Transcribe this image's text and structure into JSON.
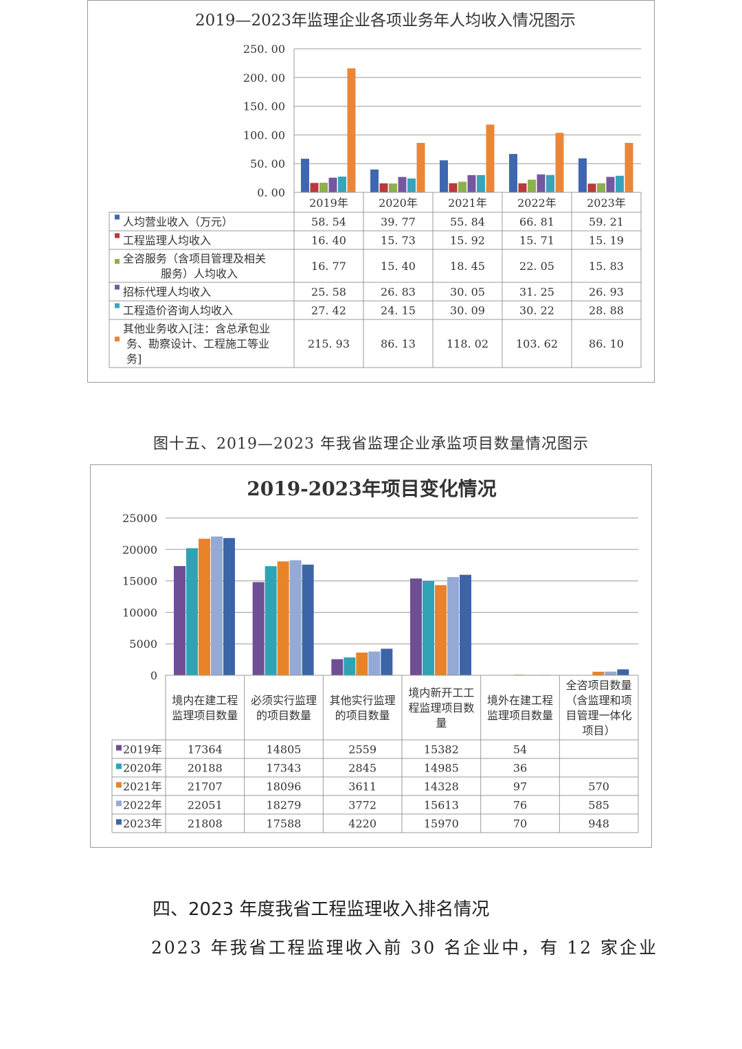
{
  "chart_data": [
    {
      "type": "bar",
      "title": "2019—2023年监理企业各项业务年人均收入情况图示",
      "categories": [
        "2019年",
        "2020年",
        "2021年",
        "2022年",
        "2023年"
      ],
      "ylim": [
        0,
        250
      ],
      "yticks": [
        "0. 00",
        "50. 00",
        "100. 00",
        "150. 00",
        "200. 00",
        "250. 00"
      ],
      "grid": true,
      "legend": "table-below",
      "series": [
        {
          "name": "人均营业收入（万元）",
          "color": "#3f66b0",
          "values": [
            58.54,
            39.77,
            55.84,
            66.81,
            59.21
          ],
          "labels": [
            "58. 54",
            "39. 77",
            "55. 84",
            "66. 81",
            "59. 21"
          ]
        },
        {
          "name": "工程监理人均收入",
          "color": "#b83a3a",
          "values": [
            16.4,
            15.73,
            15.92,
            15.71,
            15.19
          ],
          "labels": [
            "16. 40",
            "15. 73",
            "15. 92",
            "15. 71",
            "15. 19"
          ]
        },
        {
          "name": "全咨服务（含项目管理及相关服务）人均收入",
          "color": "#8cb04c",
          "values": [
            16.77,
            15.4,
            18.45,
            22.05,
            15.83
          ],
          "labels": [
            "16. 77",
            "15. 40",
            "18. 45",
            "22. 05",
            "15. 83"
          ]
        },
        {
          "name": "招标代理人均收入",
          "color": "#7557a0",
          "values": [
            25.58,
            26.83,
            30.05,
            31.25,
            26.93
          ],
          "labels": [
            "25. 58",
            "26. 83",
            "30. 05",
            "31. 25",
            "26. 93"
          ]
        },
        {
          "name": "工程造价咨询人均收入",
          "color": "#38a3bd",
          "values": [
            27.42,
            24.15,
            30.09,
            30.22,
            28.88
          ],
          "labels": [
            "27. 42",
            "24. 15",
            "30. 09",
            "30. 22",
            "28. 88"
          ]
        },
        {
          "name": "其他业务收入[注：含总承包业务、勘察设计、工程施工等业务]",
          "color": "#e8873a",
          "values": [
            215.93,
            86.13,
            118.02,
            103.62,
            86.1
          ],
          "labels": [
            "215. 93",
            "86. 13",
            "118. 02",
            "103. 62",
            "86. 10"
          ]
        }
      ]
    },
    {
      "type": "bar",
      "title": "2019-2023年项目变化情况",
      "categories": [
        "境内在建工程监理项目数量",
        "必须实行监理的项目数量",
        "其他实行监理的项目数量",
        "境内新开工工程监理项目数量",
        "境外在建工程监理项目数量",
        "全咨项目数量（含监理和项目管理一体化项目）"
      ],
      "ylim": [
        0,
        25000
      ],
      "yticks": [
        "0",
        "5000",
        "10000",
        "15000",
        "20000",
        "25000"
      ],
      "grid": true,
      "legend": "table-below",
      "series": [
        {
          "name": "2019年",
          "color": "#6e4f96",
          "values": [
            17364,
            14805,
            2559,
            15382,
            54,
            null
          ]
        },
        {
          "name": "2020年",
          "color": "#2fa3b5",
          "values": [
            20188,
            17343,
            2845,
            14985,
            36,
            null
          ]
        },
        {
          "name": "2021年",
          "color": "#e8832a",
          "values": [
            21707,
            18096,
            3611,
            14328,
            97,
            570
          ]
        },
        {
          "name": "2022年",
          "color": "#94a9d4",
          "values": [
            22051,
            18279,
            3772,
            15613,
            76,
            585
          ]
        },
        {
          "name": "2023年",
          "color": "#3c65a8",
          "values": [
            21808,
            17588,
            4220,
            15970,
            70,
            948
          ]
        }
      ]
    }
  ],
  "figure15_caption": "图十五、2019—2023 年我省监理企业承监项目数量情况图示",
  "section_heading": "四、2023 年度我省工程监理收入排名情况",
  "body_text": "2023 年我省工程监理收入前 30 名企业中，有 12 家企业"
}
